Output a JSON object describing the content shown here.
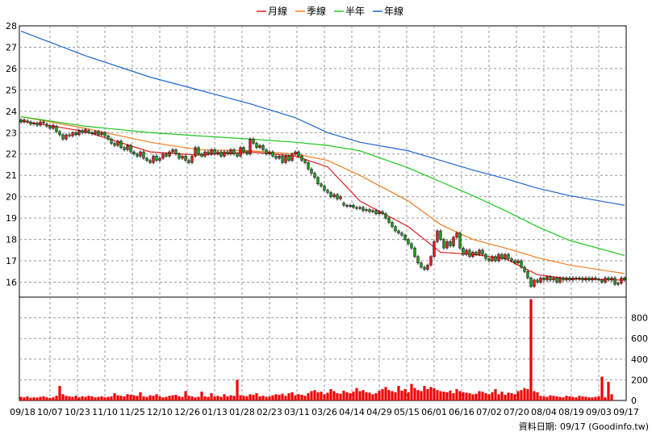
{
  "chart_data": [
    {
      "type": "candlestick",
      "legend": [
        {
          "name": "月線",
          "color": "#e41a1c"
        },
        {
          "name": "季線",
          "color": "#f07d1e"
        },
        {
          "name": "半年",
          "color": "#1ec81e"
        },
        {
          "name": "年線",
          "color": "#1e64d2"
        }
      ],
      "ylim": [
        15.3,
        28
      ],
      "yticks": [
        16,
        17,
        18,
        19,
        20,
        21,
        22,
        23,
        24,
        25,
        26,
        27,
        28
      ],
      "grid": true,
      "candles": [
        [
          0,
          23.6,
          23.5
        ],
        [
          1,
          23.5,
          23.6
        ],
        [
          2,
          23.55,
          23.5
        ],
        [
          3,
          23.5,
          23.4
        ],
        [
          4,
          23.4,
          23.45
        ],
        [
          5,
          23.45,
          23.35
        ],
        [
          6,
          23.35,
          23.5
        ],
        [
          7,
          23.5,
          23.45
        ],
        [
          8,
          23.4,
          23.3
        ],
        [
          9,
          23.3,
          23.2
        ],
        [
          10,
          23.2,
          23.35
        ],
        [
          11,
          23.3,
          23.05
        ],
        [
          12,
          23.05,
          22.9
        ],
        [
          13,
          22.9,
          22.7
        ],
        [
          14,
          22.7,
          22.9
        ],
        [
          15,
          22.9,
          22.85
        ],
        [
          16,
          22.85,
          23.0
        ],
        [
          17,
          23.0,
          22.9
        ],
        [
          18,
          22.9,
          23.1
        ],
        [
          19,
          23.1,
          23.0
        ],
        [
          20,
          23.0,
          23.15
        ],
        [
          21,
          23.1,
          23.0
        ],
        [
          22,
          23.0,
          22.95
        ],
        [
          23,
          22.95,
          23.05
        ],
        [
          24,
          23.05,
          22.9
        ],
        [
          25,
          22.9,
          23.0
        ],
        [
          26,
          23.0,
          22.85
        ],
        [
          27,
          22.85,
          22.7
        ],
        [
          28,
          22.7,
          22.5
        ],
        [
          29,
          22.5,
          22.4
        ],
        [
          30,
          22.4,
          22.6
        ],
        [
          31,
          22.6,
          22.3
        ],
        [
          32,
          22.3,
          22.2
        ],
        [
          33,
          22.2,
          22.4
        ],
        [
          34,
          22.4,
          22.1
        ],
        [
          35,
          22.1,
          22.0
        ],
        [
          36,
          22.0,
          21.9
        ],
        [
          37,
          21.9,
          22.1
        ],
        [
          38,
          22.1,
          21.8
        ],
        [
          39,
          21.8,
          21.7
        ],
        [
          40,
          21.7,
          21.6
        ],
        [
          41,
          21.6,
          21.9
        ],
        [
          42,
          21.9,
          21.7
        ],
        [
          43,
          21.7,
          21.8
        ],
        [
          44,
          21.8,
          22.0
        ],
        [
          45,
          22.0,
          21.9
        ],
        [
          46,
          21.9,
          22.1
        ],
        [
          47,
          22.1,
          22.2
        ],
        [
          48,
          22.2,
          22.0
        ],
        [
          49,
          22.0,
          21.8
        ],
        [
          50,
          21.8,
          21.9
        ],
        [
          51,
          21.9,
          21.7
        ],
        [
          52,
          21.7,
          21.6
        ],
        [
          53,
          21.6,
          21.9
        ],
        [
          54,
          21.9,
          22.3
        ],
        [
          55,
          22.3,
          22.0
        ],
        [
          56,
          22.0,
          21.9
        ],
        [
          57,
          21.9,
          22.1
        ],
        [
          58,
          22.1,
          22.0
        ],
        [
          59,
          22.0,
          22.2
        ],
        [
          60,
          22.2,
          22.0
        ],
        [
          61,
          22.0,
          22.1
        ],
        [
          62,
          22.1,
          21.9
        ],
        [
          63,
          21.9,
          22.1
        ],
        [
          64,
          22.1,
          22.0
        ],
        [
          65,
          22.0,
          22.2
        ],
        [
          66,
          22.2,
          22.0
        ],
        [
          67,
          22.0,
          21.9
        ],
        [
          68,
          21.9,
          22.3
        ],
        [
          69,
          22.3,
          22.1
        ],
        [
          70,
          22.1,
          22.0
        ],
        [
          71,
          22.0,
          22.7
        ],
        [
          72,
          22.7,
          22.5
        ],
        [
          73,
          22.5,
          22.3
        ],
        [
          74,
          22.3,
          22.4
        ],
        [
          75,
          22.4,
          22.2
        ],
        [
          76,
          22.2,
          22.0
        ],
        [
          77,
          22.0,
          22.1
        ],
        [
          78,
          22.1,
          21.9
        ],
        [
          79,
          21.9,
          21.8
        ],
        [
          80,
          21.8,
          21.9
        ],
        [
          81,
          21.9,
          21.6
        ],
        [
          82,
          21.6,
          21.9
        ],
        [
          83,
          21.9,
          21.7
        ],
        [
          84,
          21.7,
          22.0
        ],
        [
          85,
          22.0,
          22.1
        ],
        [
          86,
          22.1,
          21.9
        ],
        [
          87,
          21.9,
          21.7
        ],
        [
          88,
          21.7,
          21.6
        ],
        [
          89,
          21.6,
          21.3
        ],
        [
          90,
          21.3,
          21.1
        ],
        [
          91,
          21.1,
          20.9
        ],
        [
          92,
          20.9,
          20.6
        ],
        [
          93,
          20.6,
          20.5
        ],
        [
          94,
          20.5,
          20.3
        ],
        [
          95,
          20.3,
          20.2
        ],
        [
          96,
          20.2,
          20.0
        ],
        [
          97,
          20.0,
          20.1
        ],
        [
          98,
          20.1,
          19.9
        ],
        [
          99,
          19.9,
          20.0
        ],
        [
          100,
          19.7,
          19.6
        ],
        [
          101,
          19.6,
          19.55
        ],
        [
          102,
          19.55,
          19.6
        ],
        [
          103,
          19.6,
          19.5
        ],
        [
          104,
          19.5,
          19.45
        ],
        [
          105,
          19.45,
          19.5
        ],
        [
          106,
          19.5,
          19.35
        ],
        [
          107,
          19.35,
          19.4
        ],
        [
          108,
          19.4,
          19.3
        ],
        [
          109,
          19.3,
          19.35
        ],
        [
          110,
          19.35,
          19.2
        ],
        [
          111,
          19.2,
          19.3
        ],
        [
          112,
          19.3,
          19.2
        ],
        [
          113,
          19.2,
          19.0
        ],
        [
          114,
          19.0,
          18.8
        ],
        [
          115,
          18.8,
          18.6
        ],
        [
          116,
          18.6,
          18.4
        ],
        [
          117,
          18.4,
          18.3
        ],
        [
          118,
          18.3,
          18.2
        ],
        [
          119,
          18.2,
          18.0
        ],
        [
          120,
          18.0,
          17.8
        ],
        [
          121,
          17.8,
          17.6
        ],
        [
          122,
          17.6,
          17.2
        ],
        [
          123,
          17.2,
          16.9
        ],
        [
          124,
          16.9,
          16.7
        ],
        [
          125,
          16.7,
          16.6
        ],
        [
          126,
          16.6,
          16.8
        ],
        [
          127,
          16.8,
          17.2
        ],
        [
          128,
          17.2,
          17.9
        ],
        [
          129,
          17.9,
          18.4
        ],
        [
          130,
          18.4,
          18.0
        ],
        [
          131,
          18.0,
          17.6
        ],
        [
          132,
          17.6,
          17.9
        ],
        [
          133,
          17.9,
          17.7
        ],
        [
          134,
          17.7,
          18.1
        ],
        [
          135,
          18.1,
          18.3
        ],
        [
          136,
          18.3,
          17.6
        ],
        [
          137,
          17.6,
          17.3
        ],
        [
          138,
          17.3,
          17.5
        ],
        [
          139,
          17.5,
          17.2
        ],
        [
          140,
          17.2,
          17.4
        ],
        [
          141,
          17.4,
          17.3
        ],
        [
          142,
          17.3,
          17.5
        ],
        [
          143,
          17.5,
          17.3
        ],
        [
          144,
          17.3,
          17.1
        ],
        [
          145,
          17.1,
          17.0
        ],
        [
          146,
          17.0,
          17.2
        ],
        [
          147,
          17.2,
          17.0
        ],
        [
          148,
          17.0,
          17.3
        ],
        [
          149,
          17.3,
          17.1
        ],
        [
          150,
          17.1,
          17.3
        ],
        [
          151,
          17.3,
          17.1
        ],
        [
          152,
          17.1,
          17.0
        ],
        [
          153,
          17.0,
          16.9
        ],
        [
          154,
          16.9,
          17.0
        ],
        [
          155,
          17.0,
          16.7
        ],
        [
          156,
          16.7,
          16.5
        ],
        [
          157,
          16.5,
          16.2
        ],
        [
          158,
          16.2,
          15.8
        ],
        [
          159,
          15.8,
          16.1
        ],
        [
          160,
          16.1,
          16.0
        ],
        [
          161,
          16.0,
          16.2
        ],
        [
          162,
          16.2,
          16.1
        ],
        [
          163,
          16.1,
          16.25
        ],
        [
          164,
          16.25,
          16.1
        ],
        [
          165,
          16.1,
          16.2
        ],
        [
          166,
          16.2,
          16.0
        ],
        [
          167,
          16.0,
          16.2
        ],
        [
          168,
          16.2,
          16.1
        ],
        [
          169,
          16.1,
          16.2
        ],
        [
          170,
          16.2,
          16.1
        ],
        [
          171,
          16.1,
          16.2
        ],
        [
          172,
          16.2,
          16.15
        ],
        [
          173,
          16.15,
          16.2
        ],
        [
          174,
          16.2,
          16.1
        ],
        [
          175,
          16.1,
          16.2
        ],
        [
          176,
          16.2,
          16.1
        ],
        [
          177,
          16.1,
          16.2
        ],
        [
          178,
          16.2,
          16.15
        ],
        [
          179,
          16.15,
          16.1
        ],
        [
          180,
          16.1,
          16.0
        ],
        [
          181,
          16.0,
          16.2
        ],
        [
          182,
          16.2,
          16.1
        ],
        [
          183,
          16.1,
          16.2
        ],
        [
          184,
          16.2,
          15.9
        ],
        [
          185,
          15.9,
          15.95
        ],
        [
          186,
          15.95,
          16.2
        ],
        [
          187,
          16.2,
          16.1
        ]
      ],
      "ma_series": [
        {
          "name": "月線",
          "x": [
            0,
            20,
            40,
            55,
            71,
            85,
            95,
            105,
            120,
            130,
            140,
            150,
            160,
            170,
            187
          ],
          "y": [
            23.55,
            23.05,
            22.1,
            21.95,
            22.1,
            21.9,
            21.4,
            19.8,
            18.6,
            17.4,
            17.3,
            17.1,
            16.35,
            16.15,
            16.1
          ]
        },
        {
          "name": "季線",
          "x": [
            0,
            20,
            40,
            55,
            71,
            85,
            95,
            105,
            120,
            130,
            140,
            150,
            160,
            170,
            187
          ],
          "y": [
            23.75,
            23.2,
            22.55,
            22.2,
            22.15,
            22.0,
            21.7,
            21.0,
            19.8,
            18.7,
            18.0,
            17.6,
            17.15,
            16.8,
            16.4
          ]
        },
        {
          "name": "半年",
          "x": [
            0,
            20,
            40,
            55,
            71,
            85,
            95,
            105,
            120,
            130,
            140,
            150,
            160,
            170,
            187
          ],
          "y": [
            23.75,
            23.3,
            23.0,
            22.85,
            22.7,
            22.55,
            22.4,
            22.15,
            21.35,
            20.7,
            20.05,
            19.35,
            18.6,
            17.95,
            17.25
          ]
        },
        {
          "name": "年線",
          "x": [
            0,
            20,
            40,
            55,
            71,
            85,
            95,
            105,
            120,
            130,
            140,
            150,
            160,
            170,
            187
          ],
          "y": [
            27.75,
            26.6,
            25.6,
            25.0,
            24.35,
            23.7,
            23.0,
            22.55,
            22.15,
            21.7,
            21.25,
            20.85,
            20.4,
            20.05,
            19.6
          ]
        }
      ]
    },
    {
      "type": "bar",
      "ylim": [
        0,
        1000
      ],
      "yticks": [
        0,
        200,
        400,
        600,
        800
      ],
      "grid": true,
      "volumes": [
        35,
        30,
        40,
        25,
        30,
        28,
        35,
        40,
        30,
        25,
        30,
        45,
        140,
        60,
        45,
        40,
        35,
        45,
        30,
        40,
        35,
        45,
        40,
        30,
        35,
        40,
        30,
        35,
        40,
        70,
        50,
        45,
        40,
        60,
        55,
        50,
        45,
        80,
        40,
        35,
        50,
        45,
        60,
        40,
        30,
        35,
        45,
        50,
        55,
        40,
        35,
        90,
        45,
        40,
        30,
        35,
        85,
        40,
        35,
        70,
        40,
        45,
        35,
        60,
        40,
        50,
        45,
        200,
        50,
        45,
        40,
        60,
        55,
        70,
        40,
        45,
        35,
        40,
        50,
        60,
        55,
        65,
        45,
        70,
        80,
        50,
        60,
        55,
        45,
        70,
        90,
        100,
        80,
        85,
        60,
        75,
        110,
        90,
        70,
        65,
        95,
        80,
        70,
        85,
        120,
        90,
        100,
        80,
        75,
        60,
        70,
        95,
        110,
        130,
        100,
        90,
        80,
        140,
        95,
        110,
        80,
        160,
        120,
        100,
        90,
        140,
        110,
        130,
        120,
        100,
        90,
        85,
        80,
        95,
        70,
        110,
        90,
        80,
        75,
        70,
        60,
        65,
        90,
        85,
        70,
        60,
        80,
        110,
        60,
        85,
        55,
        75,
        70,
        60,
        90,
        100,
        120,
        110,
        980,
        90,
        80,
        45,
        40,
        35,
        50,
        45,
        40,
        35,
        30,
        45,
        40,
        35,
        30,
        45,
        40,
        35,
        30,
        30,
        35,
        40,
        230,
        30,
        180,
        60
      ],
      "xticks": [
        "09/18",
        "10/07",
        "10/23",
        "11/10",
        "11/25",
        "12/10",
        "12/26",
        "01/13",
        "01/28",
        "02/23",
        "03/11",
        "03/26",
        "04/14",
        "04/29",
        "05/15",
        "06/01",
        "06/16",
        "07/02",
        "07/20",
        "08/04",
        "08/19",
        "09/03",
        "09/17"
      ]
    }
  ],
  "footer": "資料日期: 09/17  (Goodinfo.tw)"
}
